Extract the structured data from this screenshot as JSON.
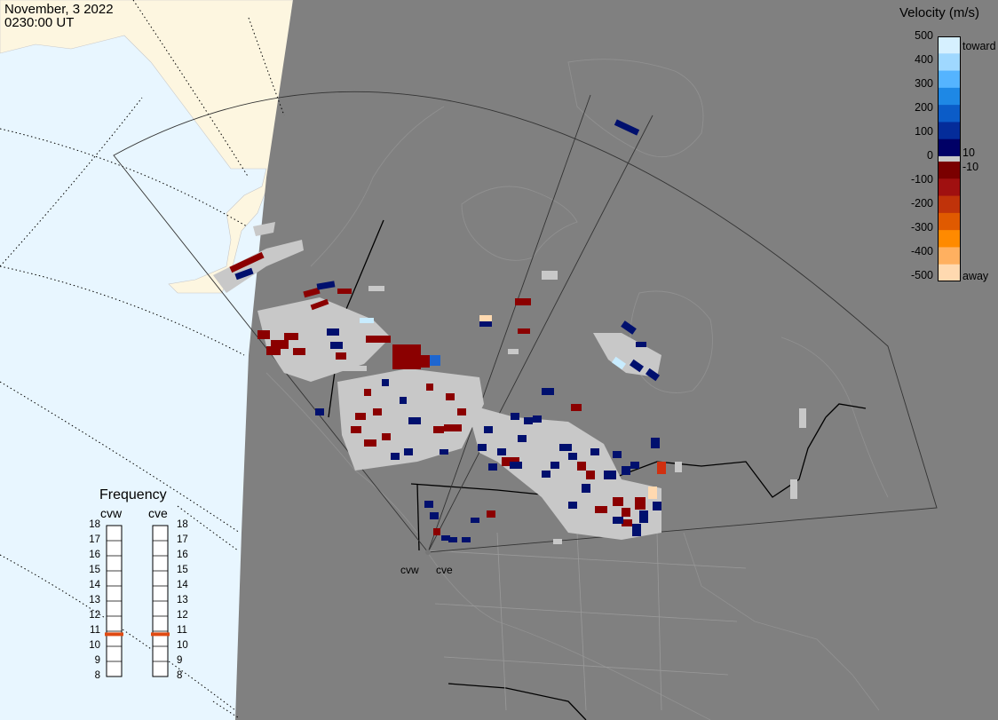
{
  "header": {
    "date": "November, 3 2022",
    "time": "0230:00 UT"
  },
  "colorbar": {
    "title": "Velocity (m/s)",
    "ticks": [
      "500",
      "400",
      "300",
      "200",
      "100",
      "0",
      "-100",
      "-200",
      "-300",
      "-400",
      "-500"
    ],
    "toward_label": "toward",
    "away_label": "away",
    "cut_pos": "10",
    "cut_neg": "-10",
    "colors": [
      "#d6f0ff",
      "#9fd8ff",
      "#55b4ff",
      "#1e88e5",
      "#0b5cc8",
      "#042c9a",
      "#000066",
      "#7a0000",
      "#a01010",
      "#c0330a",
      "#e05a00",
      "#ff8a00",
      "#ffb060",
      "#ffd9b0"
    ]
  },
  "frequency": {
    "title": "Frequency",
    "radars": [
      "cvw",
      "cve"
    ],
    "scale": [
      "18",
      "17",
      "16",
      "15",
      "14",
      "13",
      "12",
      "11",
      "10",
      "9",
      "8"
    ],
    "values_mhz": [
      10.8,
      10.8
    ],
    "marker_color": "#e04a12"
  },
  "radars": {
    "site_labels": [
      "cvw",
      "cve"
    ]
  },
  "map": {
    "ocean_color": "#e8f6ff",
    "land_color": "#fdf6e0",
    "night_color": "#808080",
    "scatter_color": "#c8c8c8"
  }
}
